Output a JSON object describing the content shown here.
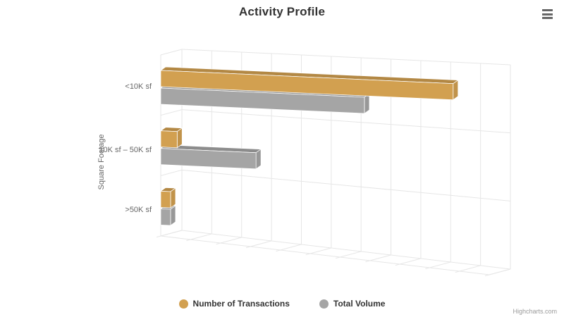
{
  "header": {
    "title": "Activity Profile"
  },
  "icons": {
    "export_menu": "hamburger"
  },
  "credits": {
    "label": "Highcharts.com"
  },
  "chart_data": {
    "type": "bar",
    "style": "3d",
    "title": "Activity Profile",
    "categories": [
      "<10K sf",
      "10K sf – 50K sf",
      ">50K sf"
    ],
    "category_axis_label": "Square Footage",
    "value_axis": {
      "min": 0,
      "max": 100,
      "tick_labels_visible": false,
      "gridline_count": 12
    },
    "series": [
      {
        "name": "Number of Transactions",
        "color": "#D2A050",
        "values": [
          89,
          5,
          3
        ]
      },
      {
        "name": "Total Volume",
        "color": "#A5A5A5",
        "values": [
          62,
          29,
          3
        ]
      }
    ],
    "legend_position": "bottom",
    "grid": true,
    "gridline_color": "#E6E6E6"
  }
}
